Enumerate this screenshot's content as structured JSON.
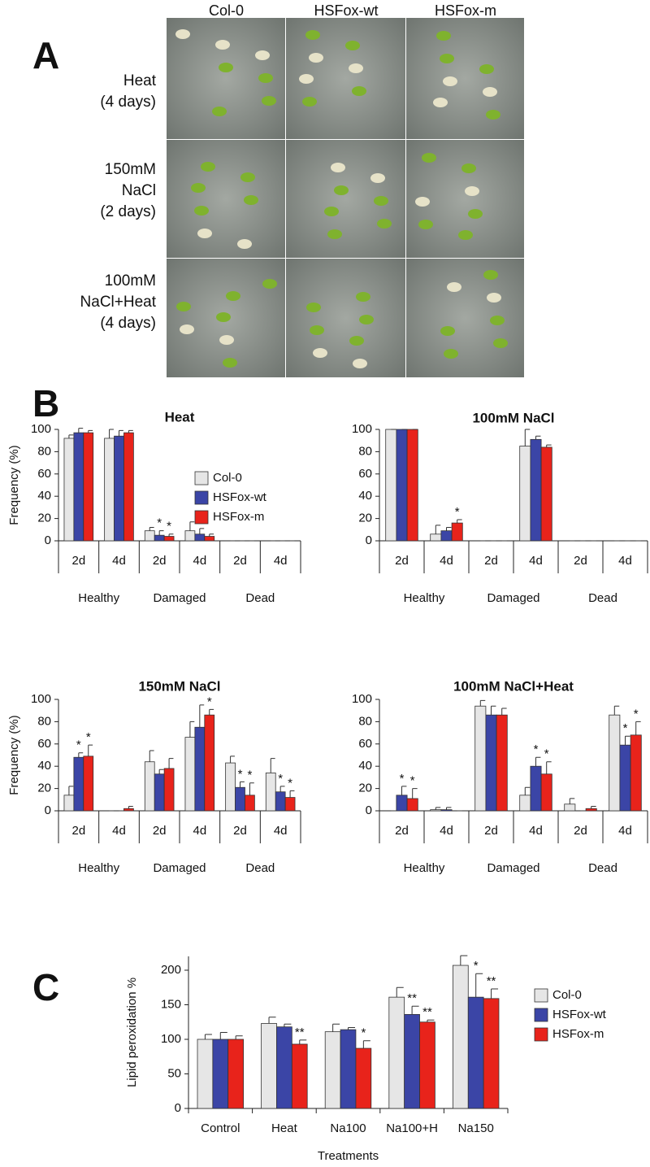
{
  "panel_a": {
    "letter": "A",
    "columns": [
      "Col-0",
      "HSFox-wt",
      "HSFox-m"
    ],
    "rows": [
      [
        "Heat",
        "(4 days)"
      ],
      [
        "150mM",
        "NaCl",
        "(2 days)"
      ],
      [
        "100mM",
        "NaCl+Heat",
        "(4 days)"
      ]
    ]
  },
  "panel_b": {
    "letter": "B"
  },
  "panel_c": {
    "letter": "C"
  },
  "chart_data": [
    {
      "type": "bar",
      "title": "Heat",
      "ylabel": "Frequency (%)",
      "categories": [
        "2d",
        "4d",
        "2d",
        "4d",
        "2d",
        "4d"
      ],
      "groups": [
        "Healthy",
        "Damaged",
        "Dead"
      ],
      "ylim": [
        0,
        100
      ],
      "yticks": [
        0,
        20,
        40,
        60,
        80,
        100
      ],
      "legend": "inside",
      "series": [
        {
          "name": "Col-0",
          "color": "#e6e6e6",
          "values": [
            92,
            92,
            9,
            9,
            0,
            0
          ],
          "errors": [
            3,
            8,
            3,
            8,
            0,
            0
          ],
          "stars": [
            null,
            null,
            null,
            null,
            null,
            null
          ]
        },
        {
          "name": "HSFox-wt",
          "color": "#3b45a6",
          "values": [
            97,
            94,
            5,
            6,
            0,
            0
          ],
          "errors": [
            4,
            5,
            4,
            5,
            0,
            0
          ],
          "stars": [
            null,
            null,
            "*",
            null,
            null,
            null
          ]
        },
        {
          "name": "HSFox-m",
          "color": "#e8231b",
          "values": [
            97,
            97,
            4,
            4,
            0,
            0
          ],
          "errors": [
            2,
            2,
            2,
            2,
            0,
            0
          ],
          "stars": [
            null,
            null,
            "*",
            null,
            null,
            null
          ]
        }
      ]
    },
    {
      "type": "bar",
      "title": "100mM NaCl",
      "categories": [
        "2d",
        "4d",
        "2d",
        "4d",
        "2d",
        "4d"
      ],
      "groups": [
        "Healthy",
        "Damaged",
        "Dead"
      ],
      "ylim": [
        0,
        100
      ],
      "yticks": [
        0,
        20,
        40,
        60,
        80,
        100
      ],
      "series": [
        {
          "name": "Col-0",
          "color": "#e6e6e6",
          "values": [
            100,
            6,
            0,
            85,
            0,
            0
          ],
          "errors": [
            0,
            8,
            0,
            15,
            0,
            0
          ],
          "stars": [
            null,
            null,
            null,
            null,
            null,
            null
          ]
        },
        {
          "name": "HSFox-wt",
          "color": "#3b45a6",
          "values": [
            100,
            9,
            0,
            91,
            0,
            0
          ],
          "errors": [
            0,
            3,
            0,
            3,
            0,
            0
          ],
          "stars": [
            null,
            null,
            null,
            null,
            null,
            null
          ]
        },
        {
          "name": "HSFox-m",
          "color": "#e8231b",
          "values": [
            100,
            16,
            0,
            84,
            0,
            0
          ],
          "errors": [
            0,
            3,
            0,
            2,
            0,
            0
          ],
          "stars": [
            null,
            "*",
            null,
            null,
            null,
            null
          ]
        }
      ]
    },
    {
      "type": "bar",
      "title": "150mM NaCl",
      "ylabel": "Frequency (%)",
      "categories": [
        "2d",
        "4d",
        "2d",
        "4d",
        "2d",
        "4d"
      ],
      "groups": [
        "Healthy",
        "Damaged",
        "Dead"
      ],
      "ylim": [
        0,
        100
      ],
      "yticks": [
        0,
        20,
        40,
        60,
        80,
        100
      ],
      "series": [
        {
          "name": "Col-0",
          "color": "#e6e6e6",
          "values": [
            14,
            0,
            44,
            66,
            43,
            34
          ],
          "errors": [
            8,
            0,
            10,
            14,
            6,
            13
          ],
          "stars": [
            null,
            null,
            null,
            null,
            null,
            null
          ]
        },
        {
          "name": "HSFox-wt",
          "color": "#3b45a6",
          "values": [
            48,
            0,
            33,
            75,
            21,
            17
          ],
          "errors": [
            4,
            0,
            4,
            20,
            5,
            5
          ],
          "stars": [
            "*",
            null,
            null,
            null,
            "*",
            "*"
          ]
        },
        {
          "name": "HSFox-m",
          "color": "#e8231b",
          "values": [
            49,
            2,
            38,
            86,
            14,
            12
          ],
          "errors": [
            10,
            2,
            9,
            5,
            11,
            6
          ],
          "stars": [
            "*",
            null,
            null,
            "*",
            "*",
            "*"
          ]
        }
      ]
    },
    {
      "type": "bar",
      "title": "100mM NaCl+Heat",
      "categories": [
        "2d",
        "4d",
        "2d",
        "4d",
        "2d",
        "4d"
      ],
      "groups": [
        "Healthy",
        "Damaged",
        "Dead"
      ],
      "ylim": [
        0,
        100
      ],
      "yticks": [
        0,
        20,
        40,
        60,
        80,
        100
      ],
      "series": [
        {
          "name": "Col-0",
          "color": "#e6e6e6",
          "values": [
            0,
            1,
            94,
            14,
            6,
            86
          ],
          "errors": [
            0,
            2,
            5,
            7,
            5,
            8
          ],
          "stars": [
            null,
            null,
            null,
            null,
            null,
            null
          ]
        },
        {
          "name": "HSFox-wt",
          "color": "#3b45a6",
          "values": [
            14,
            1,
            86,
            40,
            0,
            59
          ],
          "errors": [
            8,
            2,
            8,
            8,
            0,
            8
          ],
          "stars": [
            "*",
            null,
            null,
            "*",
            null,
            "*"
          ]
        },
        {
          "name": "HSFox-m",
          "color": "#e8231b",
          "values": [
            11,
            0,
            86,
            33,
            2,
            68
          ],
          "errors": [
            9,
            0,
            6,
            11,
            2,
            12
          ],
          "stars": [
            "*",
            null,
            null,
            "*",
            null,
            "*"
          ]
        }
      ]
    },
    {
      "type": "bar",
      "ylabel": "Lipid peroxidation %",
      "xlabel": "Treatments",
      "categories": [
        "Control",
        "Heat",
        "Na100",
        "Na100+H",
        "Na150"
      ],
      "ylim": [
        0,
        220
      ],
      "yticks": [
        0,
        50,
        100,
        150,
        200
      ],
      "legend": "right",
      "series": [
        {
          "name": "Col-0",
          "color": "#e6e6e6",
          "values": [
            100,
            123,
            111,
            161,
            207
          ],
          "errors": [
            7,
            9,
            11,
            14,
            14
          ],
          "stars": [
            null,
            null,
            null,
            null,
            null
          ]
        },
        {
          "name": "HSFox-wt",
          "color": "#3b45a6",
          "values": [
            100,
            118,
            114,
            136,
            161
          ],
          "errors": [
            10,
            4,
            3,
            12,
            34
          ],
          "stars": [
            null,
            null,
            null,
            "**",
            "*"
          ]
        },
        {
          "name": "HSFox-m",
          "color": "#e8231b",
          "values": [
            100,
            93,
            87,
            125,
            159
          ],
          "errors": [
            5,
            6,
            11,
            3,
            14
          ],
          "stars": [
            null,
            "**",
            "*",
            "**",
            "**"
          ]
        }
      ]
    }
  ]
}
